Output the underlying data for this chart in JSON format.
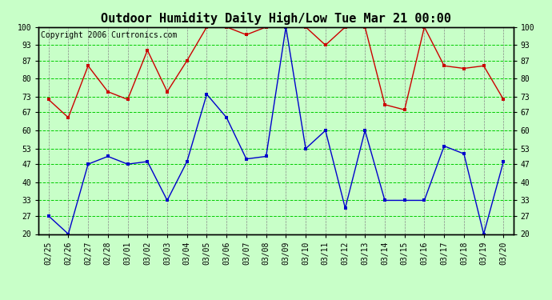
{
  "title": "Outdoor Humidity Daily High/Low Tue Mar 21 00:00",
  "copyright": "Copyright 2006 Curtronics.com",
  "labels": [
    "02/25",
    "02/26",
    "02/27",
    "02/28",
    "03/01",
    "03/02",
    "03/03",
    "03/04",
    "03/05",
    "03/06",
    "03/07",
    "03/08",
    "03/09",
    "03/10",
    "03/11",
    "03/12",
    "03/13",
    "03/14",
    "03/15",
    "03/16",
    "03/17",
    "03/18",
    "03/19",
    "03/20"
  ],
  "high": [
    72,
    65,
    85,
    75,
    72,
    91,
    75,
    87,
    100,
    100,
    97,
    100,
    100,
    100,
    93,
    100,
    100,
    70,
    68,
    100,
    85,
    84,
    85,
    72
  ],
  "low": [
    27,
    20,
    47,
    50,
    47,
    48,
    33,
    48,
    74,
    65,
    49,
    50,
    100,
    53,
    60,
    30,
    60,
    33,
    33,
    33,
    54,
    51,
    20,
    48
  ],
  "high_color": "#cc0000",
  "low_color": "#0000cc",
  "background_color": "#c8ffc8",
  "plot_bg": "#c8ffc8",
  "grid_h_color": "#00cc00",
  "grid_v_color": "#888888",
  "border_color": "#000000",
  "title_fontsize": 11,
  "copyright_fontsize": 7,
  "tick_fontsize": 7,
  "ylim": [
    20,
    100
  ],
  "yticks": [
    20,
    27,
    33,
    40,
    47,
    53,
    60,
    67,
    73,
    80,
    87,
    93,
    100
  ]
}
